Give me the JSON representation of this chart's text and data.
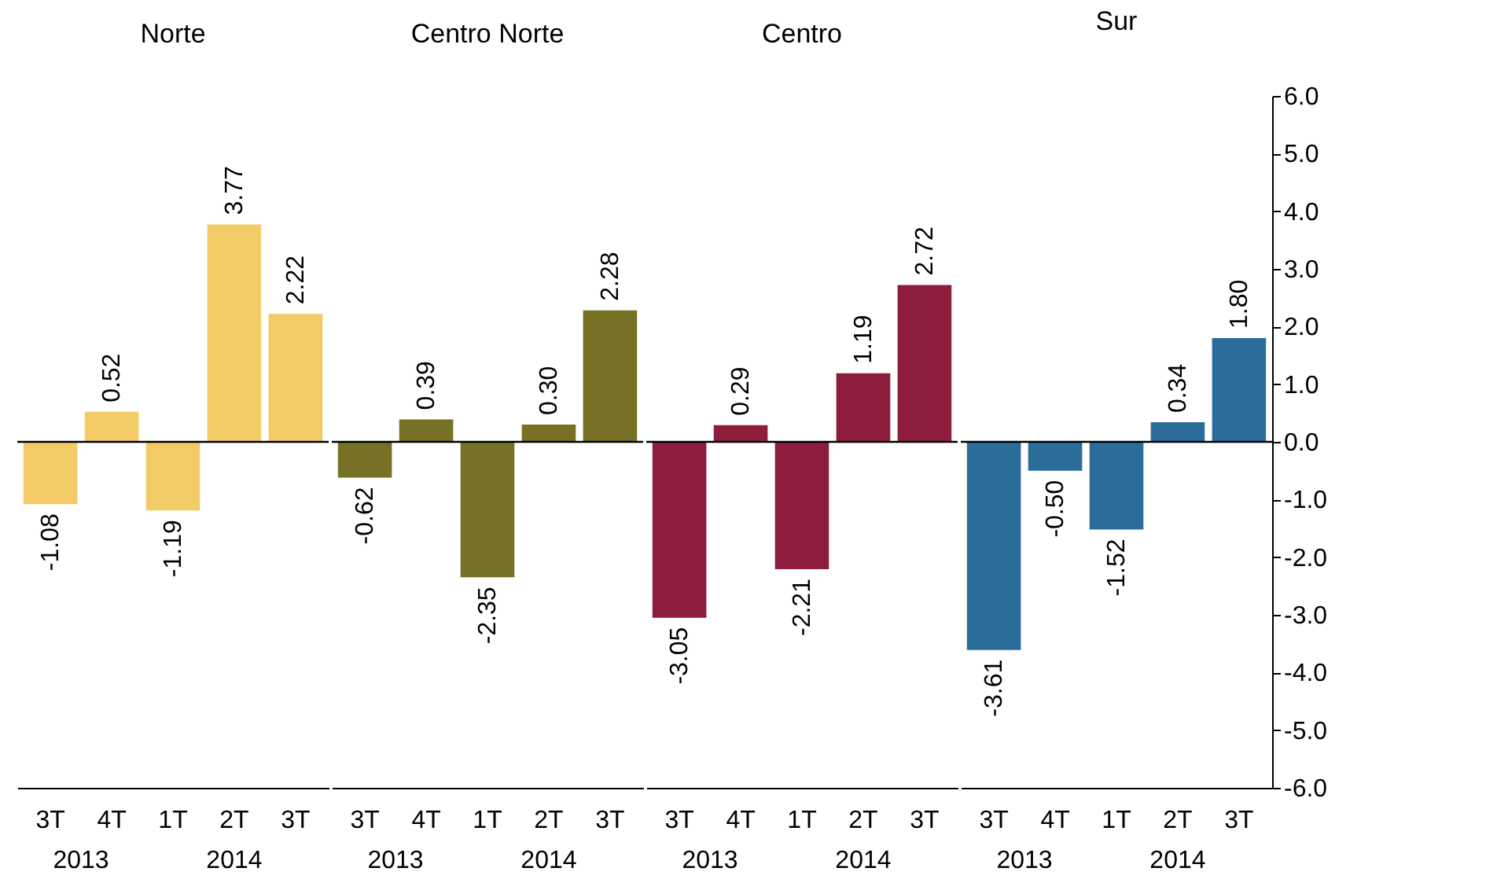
{
  "chart_data": [
    {
      "type": "bar",
      "title": "Norte",
      "categories": [
        "3T",
        "4T",
        "1T",
        "2T",
        "3T"
      ],
      "values": [
        -1.08,
        0.52,
        -1.19,
        3.77,
        2.22
      ],
      "value_labels": [
        "-1.08",
        "0.52",
        "-1.19",
        "3.77",
        "2.22"
      ],
      "color": "#f2cb67",
      "annotations": [
        "2013",
        "2014"
      ],
      "ylim": [
        -6,
        6
      ],
      "ref_lines": [
        {
          "axis": "y",
          "value": 0
        }
      ],
      "grid": false,
      "tick_labels": "x"
    },
    {
      "type": "bar",
      "title": "Centro Norte",
      "categories": [
        "3T",
        "4T",
        "1T",
        "2T",
        "3T"
      ],
      "values": [
        -0.62,
        0.39,
        -2.35,
        0.3,
        2.28
      ],
      "value_labels": [
        "-0.62",
        "0.39",
        "-2.35",
        "0.30",
        "2.28"
      ],
      "color": "#767125",
      "annotations": [
        "2013",
        "2014"
      ],
      "ylim": [
        -6,
        6
      ],
      "ref_lines": [
        {
          "axis": "y",
          "value": 0
        }
      ],
      "grid": false,
      "tick_labels": "x"
    },
    {
      "type": "bar",
      "title": "Centro",
      "categories": [
        "3T",
        "4T",
        "1T",
        "2T",
        "3T"
      ],
      "values": [
        -3.05,
        0.29,
        -2.21,
        1.19,
        2.72
      ],
      "value_labels": [
        "-3.05",
        "0.29",
        "-2.21",
        "1.19",
        "2.72"
      ],
      "color": "#8e1c3c",
      "annotations": [
        "2013",
        "2014"
      ],
      "ylim": [
        -6,
        6
      ],
      "ref_lines": [
        {
          "axis": "y",
          "value": 0
        }
      ],
      "grid": false,
      "tick_labels": "x"
    },
    {
      "type": "bar",
      "title": "Sur",
      "categories": [
        "3T",
        "4T",
        "1T",
        "2T",
        "3T"
      ],
      "values": [
        -3.61,
        -0.5,
        -1.52,
        0.34,
        1.8
      ],
      "value_labels": [
        "-3.61",
        "-0.50",
        "-1.52",
        "0.34",
        "1.80"
      ],
      "color": "#2a6d9a",
      "annotations": [
        "2013",
        "2014"
      ],
      "ylim": [
        -6,
        6
      ],
      "yticks": [
        {
          "value": -6,
          "label": "-6.0"
        },
        {
          "value": -5,
          "label": "-5.0"
        },
        {
          "value": -4,
          "label": "-4.0"
        },
        {
          "value": -3,
          "label": "-3.0"
        },
        {
          "value": -2,
          "label": "-2.0"
        },
        {
          "value": -1,
          "label": "-1.0"
        },
        {
          "value": 0,
          "label": "0.0"
        },
        {
          "value": 1,
          "label": "1.0"
        },
        {
          "value": 2,
          "label": "2.0"
        },
        {
          "value": 3,
          "label": "3.0"
        },
        {
          "value": 4,
          "label": "4.0"
        },
        {
          "value": 5,
          "label": "5.0"
        },
        {
          "value": 6,
          "label": "6.0"
        }
      ],
      "ref_lines": [
        {
          "axis": "y",
          "value": 0
        }
      ],
      "grid": false
    }
  ]
}
